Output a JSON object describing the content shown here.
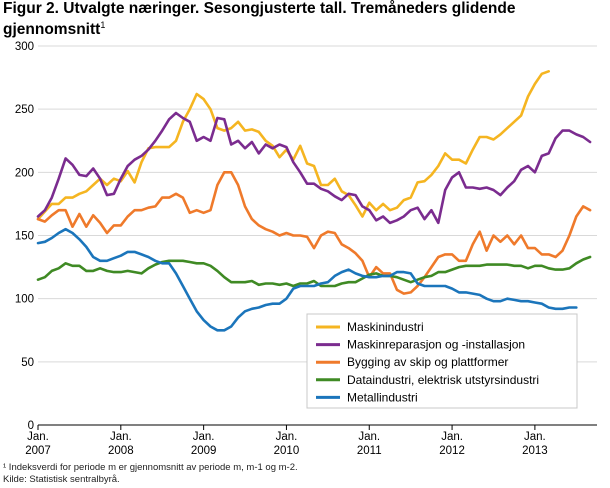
{
  "title": "Figur 2. Utvalgte næringer. Sesongjusterte tall. Tremåneders glidende gjennomsnitt",
  "title_sup": "1",
  "footnote": "¹ Indeksverdi for periode m er gjennomsnitt av periode m, m-1 og m-2.",
  "source": "Kilde: Statistisk sentralbyrå.",
  "chart_data": {
    "type": "line",
    "title": "Figur 2. Utvalgte næringer. Sesongjusterte tall. Tremåneders glidende gjennomsnitt",
    "xlabel": "",
    "ylabel": "",
    "ylim": [
      0,
      300
    ],
    "yticks": [
      0,
      50,
      100,
      150,
      200,
      250,
      300
    ],
    "x_start": "2007-01",
    "x_tick_labels": [
      {
        "month": "Jan.",
        "year": "2007"
      },
      {
        "month": "Jan.",
        "year": "2008"
      },
      {
        "month": "Jan.",
        "year": "2009"
      },
      {
        "month": "Jan.",
        "year": "2010"
      },
      {
        "month": "Jan.",
        "year": "2011"
      },
      {
        "month": "Jan.",
        "year": "2012"
      },
      {
        "month": "Jan.",
        "year": "2013"
      }
    ],
    "grid": true,
    "legend_position": "bottom-right",
    "series": [
      {
        "name": "Maskinindustri",
        "color": "#f5b521",
        "values": [
          163,
          169,
          175,
          175,
          180,
          180,
          183,
          185,
          190,
          195,
          190,
          195,
          193,
          201,
          192,
          208,
          219,
          220,
          220,
          220,
          225,
          240,
          250,
          262,
          258,
          250,
          235,
          233,
          235,
          240,
          233,
          234,
          232,
          225,
          221,
          212,
          218,
          210,
          221,
          207,
          205,
          190,
          190,
          195,
          185,
          182,
          174,
          165,
          176,
          170,
          175,
          170,
          172,
          178,
          180,
          192,
          193,
          198,
          205,
          215,
          210,
          210,
          207,
          218,
          228,
          228,
          226,
          230,
          235,
          240,
          245,
          260,
          270,
          278,
          280
        ]
      },
      {
        "name": "Maskinreparasjon og -installasjon",
        "color": "#7b2c8f",
        "values": [
          165,
          170,
          180,
          195,
          211,
          206,
          198,
          197,
          203,
          195,
          182,
          183,
          195,
          205,
          210,
          213,
          218,
          225,
          233,
          242,
          247,
          243,
          240,
          225,
          228,
          225,
          243,
          242,
          222,
          225,
          219,
          224,
          215,
          222,
          219,
          222,
          220,
          208,
          200,
          191,
          191,
          187,
          185,
          181,
          178,
          183,
          182,
          173,
          170,
          162,
          165,
          160,
          162,
          165,
          170,
          172,
          163,
          170,
          160,
          186,
          196,
          200,
          188,
          188,
          187,
          188,
          186,
          182,
          188,
          193,
          202,
          205,
          200,
          213,
          215,
          227,
          233,
          233,
          230,
          228,
          224
        ]
      },
      {
        "name": "Bygging av skip og plattformer",
        "color": "#ef7a2b",
        "values": [
          163,
          161,
          166,
          170,
          170,
          157,
          167,
          157,
          166,
          160,
          152,
          158,
          158,
          165,
          170,
          170,
          172,
          173,
          180,
          180,
          183,
          180,
          168,
          170,
          168,
          170,
          190,
          200,
          200,
          190,
          173,
          163,
          158,
          155,
          153,
          150,
          152,
          150,
          150,
          149,
          140,
          150,
          153,
          152,
          143,
          140,
          136,
          130,
          117,
          125,
          120,
          120,
          107,
          104,
          105,
          110,
          117,
          125,
          133,
          135,
          135,
          130,
          130,
          143,
          153,
          138,
          150,
          145,
          150,
          143,
          150,
          140,
          140,
          135,
          135,
          133,
          138,
          150,
          165,
          173,
          170
        ]
      },
      {
        "name": "Dataindustri, elektrisk utstyrsindustri",
        "color": "#3f8a24",
        "values": [
          115,
          117,
          122,
          124,
          128,
          126,
          126,
          122,
          122,
          124,
          122,
          121,
          121,
          122,
          121,
          120,
          124,
          127,
          129,
          130,
          130,
          130,
          129,
          128,
          128,
          126,
          122,
          117,
          113,
          113,
          113,
          114,
          111,
          112,
          112,
          111,
          112,
          110,
          112,
          112,
          114,
          110,
          110,
          110,
          112,
          113,
          113,
          116,
          119,
          120,
          118,
          118,
          117,
          115,
          113,
          115,
          117,
          118,
          121,
          121,
          123,
          125,
          126,
          126,
          126,
          127,
          127,
          127,
          127,
          126,
          126,
          124,
          126,
          126,
          124,
          123,
          123,
          124,
          128,
          131,
          133
        ]
      },
      {
        "name": "Metallindustri",
        "color": "#1b75bb",
        "values": [
          144,
          145,
          148,
          152,
          155,
          152,
          147,
          141,
          133,
          130,
          130,
          132,
          134,
          137,
          137,
          135,
          133,
          130,
          128,
          128,
          120,
          110,
          100,
          90,
          83,
          78,
          75,
          75,
          78,
          85,
          90,
          92,
          93,
          95,
          96,
          96,
          100,
          108,
          110,
          110,
          110,
          112,
          113,
          118,
          121,
          123,
          120,
          118,
          117,
          117,
          118,
          118,
          121,
          121,
          120,
          112,
          110,
          110,
          110,
          110,
          108,
          105,
          105,
          104,
          103,
          100,
          98,
          98,
          100,
          99,
          98,
          98,
          97,
          96,
          93,
          92,
          92,
          93,
          93
        ]
      }
    ]
  }
}
